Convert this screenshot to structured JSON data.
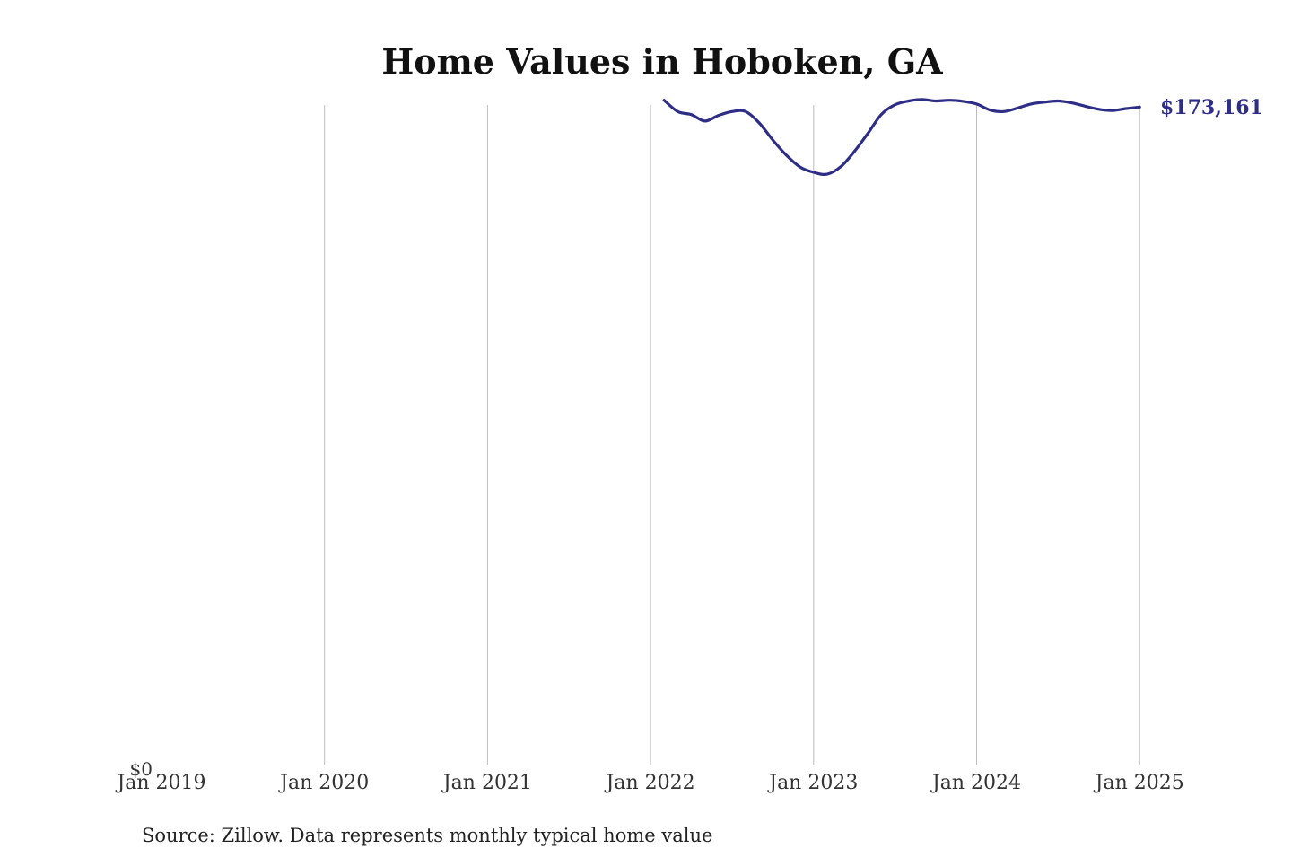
{
  "chart_data": {
    "type": "line",
    "title": "Home Values in Hoboken, GA",
    "xlabel": "",
    "ylabel": "",
    "x_ticks": [
      "Jan 2019",
      "Jan 2020",
      "Jan 2021",
      "Jan 2022",
      "Jan 2023",
      "Jan 2024",
      "Jan 2025"
    ],
    "y_tick_label": "$0",
    "ylim": [
      0,
      173500
    ],
    "grid": "vertical",
    "legend": "none",
    "end_label": "$173,161",
    "source": "Source: Zillow. Data represents monthly typical home value",
    "line_color": "#2e2e86",
    "series": [
      {
        "x": [
          "2022-02",
          "2022-03",
          "2022-04",
          "2022-05",
          "2022-06",
          "2022-07",
          "2022-08",
          "2022-09",
          "2022-10",
          "2022-11",
          "2022-12",
          "2023-01",
          "2023-02",
          "2023-03",
          "2023-04",
          "2023-05",
          "2023-06",
          "2023-07",
          "2023-08",
          "2023-09",
          "2023-10",
          "2023-11",
          "2023-12",
          "2024-01",
          "2024-02",
          "2024-03",
          "2024-04",
          "2024-05",
          "2024-06",
          "2024-07",
          "2024-08",
          "2024-09",
          "2024-10",
          "2024-11",
          "2024-12",
          "2025-01"
        ],
        "values": [
          175000,
          172000,
          171200,
          169500,
          171000,
          172000,
          172000,
          169000,
          164500,
          160500,
          157400,
          156000,
          155500,
          157500,
          161500,
          166300,
          171300,
          173800,
          174800,
          175200,
          174800,
          175000,
          174700,
          174000,
          172400,
          172000,
          172900,
          174000,
          174500,
          174800,
          174300,
          173400,
          172600,
          172300,
          172800,
          173161
        ]
      }
    ]
  }
}
